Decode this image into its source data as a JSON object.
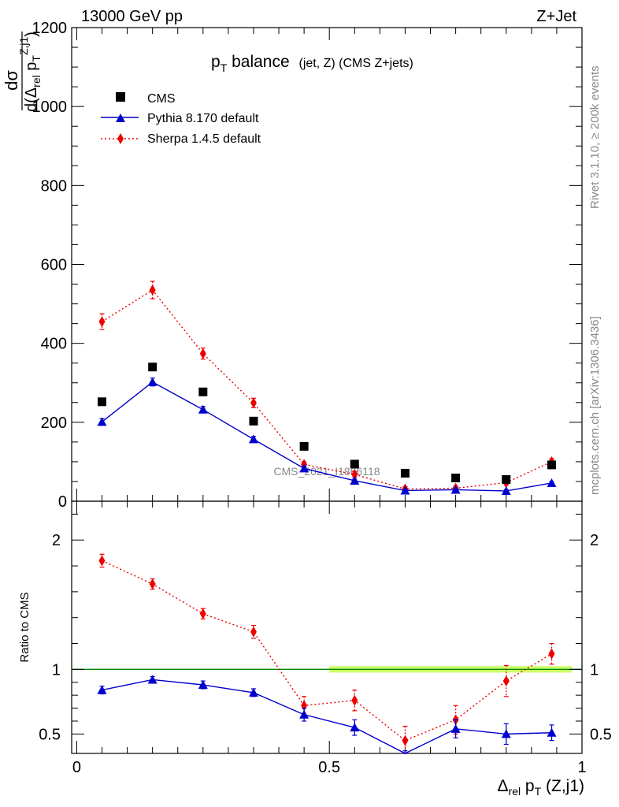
{
  "header": {
    "left": "13000 GeV pp",
    "right": "Z+Jet"
  },
  "side_text": {
    "rivet": "Rivet 3.1.10, ≥ 200k events",
    "mcplots": "mcplots.cern.ch [arXiv:1306.3436]"
  },
  "watermark": "CMS_2021_I1866118",
  "title": {
    "main": "p",
    "main_sub": "T",
    "main_rest": " balance",
    "sub": "(jet, Z) (CMS Z+jets)"
  },
  "ylabel_top": {
    "num": "dσ",
    "den_a": "d(Δ",
    "den_rel": "rel",
    "den_b": " p",
    "den_T": "T",
    "den_sup": "Z,j1",
    "den_c": ")"
  },
  "ylabel_bottom": "Ratio to CMS",
  "xlabel": {
    "a": "Δ",
    "rel": "rel",
    "b": " p",
    "T": "T",
    "c": " (Z,j1)"
  },
  "colors": {
    "cms": "#000000",
    "pythia": "#0000cc",
    "sherpa": "#ee0000",
    "band": "#ccff66",
    "unity": "#008800"
  },
  "chart_data": [
    {
      "type": "scatter",
      "panel": "main",
      "x": [
        0.05,
        0.15,
        0.25,
        0.35,
        0.45,
        0.55,
        0.65,
        0.75,
        0.85,
        0.94
      ],
      "xlim": [
        -0.01,
        1.0
      ],
      "ylim": [
        0,
        1200
      ],
      "yticks": [
        0,
        200,
        400,
        600,
        800,
        1000,
        1200
      ],
      "ytick_labels": [
        "0",
        "200",
        "400",
        "600",
        "800",
        "1000",
        "1200"
      ],
      "legend_position": "top-left",
      "series": [
        {
          "name": "CMS",
          "style": "markers",
          "values": [
            252,
            340,
            277,
            203,
            139,
            94,
            71,
            59,
            55,
            92
          ]
        },
        {
          "name": "Pythia 8.170 default",
          "style": "line",
          "values": [
            201,
            302,
            232,
            157,
            83,
            52,
            27,
            29,
            26,
            46
          ],
          "errors": [
            8,
            10,
            8,
            7,
            5,
            4,
            3,
            3,
            3,
            4
          ]
        },
        {
          "name": "Sherpa 1.4.5 default",
          "style": "dotted",
          "values": [
            455,
            535,
            374,
            249,
            93,
            68,
            31,
            33,
            47,
            100
          ],
          "errors": [
            20,
            22,
            14,
            12,
            7,
            7,
            6,
            5,
            6,
            8
          ]
        }
      ]
    },
    {
      "type": "line",
      "panel": "ratio",
      "x": [
        0.05,
        0.15,
        0.25,
        0.35,
        0.45,
        0.55,
        0.65,
        0.75,
        0.85,
        0.94
      ],
      "xlim": [
        -0.01,
        1.0
      ],
      "ylim": [
        0.35,
        2.3
      ],
      "ylabel": "Ratio to CMS",
      "xlabel": "Δrel pT (Z,j1)",
      "yticks": [
        0.5,
        1,
        2
      ],
      "ytick_labels": [
        "0.5",
        "1",
        "2"
      ],
      "xticks": [
        0,
        0.5,
        1
      ],
      "xtick_labels": [
        "0",
        "0.5",
        "1"
      ],
      "series": [
        {
          "name": "Pythia 8.170 default",
          "values": [
            0.84,
            0.92,
            0.88,
            0.82,
            0.65,
            0.55,
            0.3,
            0.54,
            0.5,
            0.51
          ],
          "errors": [
            0.03,
            0.025,
            0.03,
            0.03,
            0.05,
            0.06,
            0.07,
            0.07,
            0.08,
            0.06
          ]
        },
        {
          "name": "Sherpa 1.4.5 default",
          "values": [
            1.84,
            1.66,
            1.43,
            1.29,
            0.72,
            0.76,
            0.45,
            0.61,
            0.91,
            1.12
          ],
          "errors": [
            0.05,
            0.04,
            0.04,
            0.05,
            0.07,
            0.08,
            0.11,
            0.11,
            0.12,
            0.08
          ]
        }
      ]
    }
  ]
}
